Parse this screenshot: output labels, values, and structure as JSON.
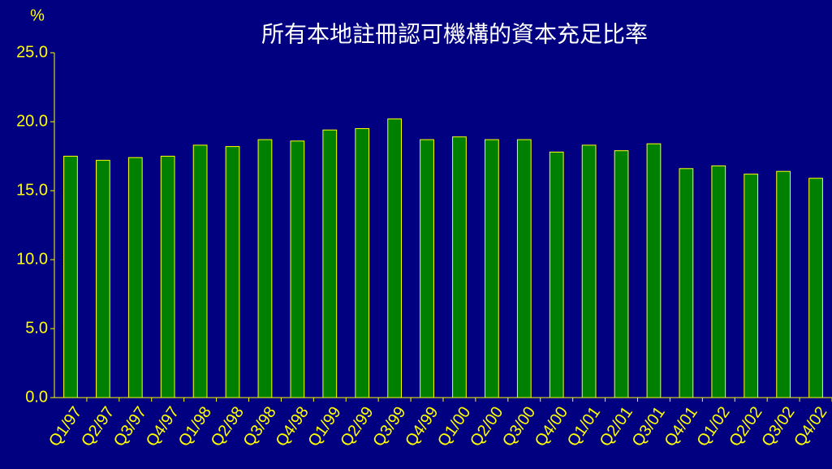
{
  "chart_data": {
    "type": "bar",
    "title": "所有本地註冊認可機構的資本充足比率",
    "y_label": "%",
    "categories": [
      "Q1/97",
      "Q2/97",
      "Q3/97",
      "Q4/97",
      "Q1/98",
      "Q2/98",
      "Q3/98",
      "Q4/98",
      "Q1/99",
      "Q2/99",
      "Q3/99",
      "Q4/99",
      "Q1/00",
      "Q2/00",
      "Q3/00",
      "Q4/00",
      "Q1/01",
      "Q2/01",
      "Q3/01",
      "Q4/01",
      "Q1/02",
      "Q2/02",
      "Q3/02",
      "Q4/02"
    ],
    "values": [
      17.5,
      17.2,
      17.4,
      17.5,
      18.3,
      18.2,
      18.7,
      18.6,
      19.4,
      19.5,
      20.2,
      18.7,
      18.9,
      18.7,
      18.7,
      17.8,
      18.3,
      17.9,
      18.4,
      16.6,
      16.8,
      16.2,
      16.4,
      15.9
    ],
    "color": "#008000",
    "edge_color": "#ffff00",
    "ylim": [
      0,
      25
    ],
    "yticks": [
      {
        "value": 0,
        "label": "0.0"
      },
      {
        "value": 5,
        "label": "5.0"
      },
      {
        "value": 10,
        "label": "10.0"
      },
      {
        "value": 15,
        "label": "15.0"
      },
      {
        "value": 20,
        "label": "20.0"
      },
      {
        "value": 25,
        "label": "25.0"
      }
    ],
    "grid": false
  }
}
